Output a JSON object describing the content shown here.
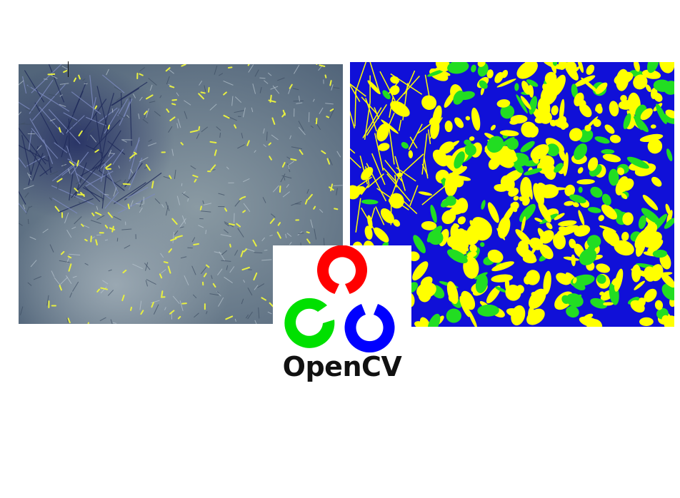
{
  "logo": {
    "text": "OpenCV",
    "colors": {
      "red": "#ff0000",
      "green": "#00e000",
      "blue": "#0000ff",
      "text": "#111111"
    }
  },
  "photo_panel": {
    "description_icon": "grass-photo-image"
  },
  "segmentation_panel": {
    "description_icon": "segmentation-map-image",
    "colors": {
      "yellow": "#ffff00",
      "green": "#22dd22",
      "blue": "#1010d8"
    }
  }
}
